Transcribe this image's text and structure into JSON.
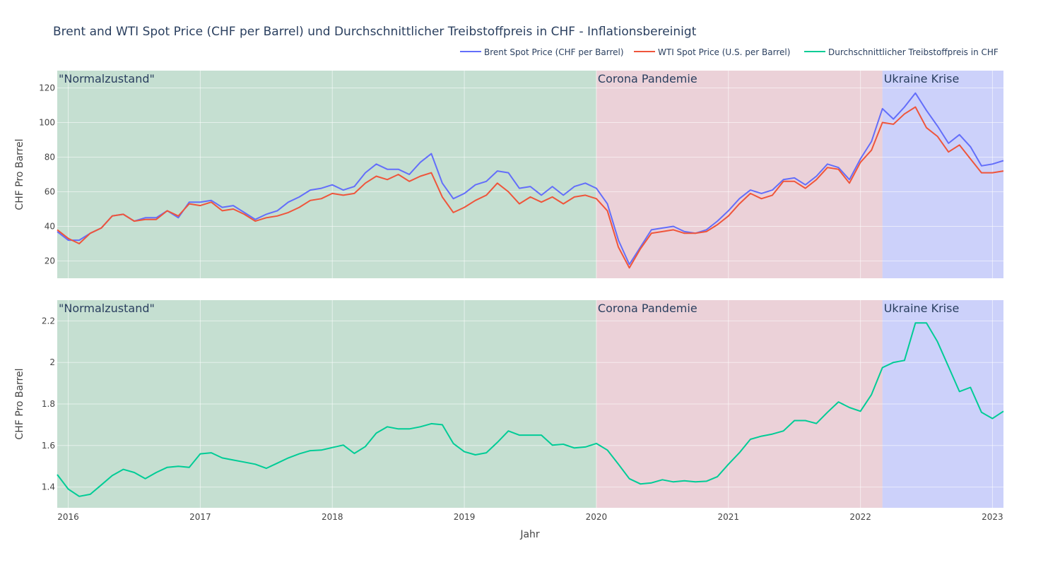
{
  "chart_data": {
    "type": "line",
    "title": "Brent and WTI Spot Price (CHF per Barrel) und Durchschnittlicher Treibstoffpreis in CHF - Inflationsbereinigt",
    "xlabel": "Jahr",
    "x_ticks": [
      "2016",
      "2017",
      "2018",
      "2019",
      "2020",
      "2021",
      "2022",
      "2023"
    ],
    "x_range": [
      "2015-12",
      "2023-02"
    ],
    "legend_position": "top-right",
    "periods": [
      {
        "label": "\"Normalzustand\"",
        "start": "2015-12",
        "end": "2020-01",
        "color": "#8bbfa3"
      },
      {
        "label": "Corona Pandemie",
        "start": "2020-01",
        "end": "2022-03",
        "color": "#d8a4b1"
      },
      {
        "label": "Ukraine Krise",
        "start": "2022-03",
        "end": "2023-02",
        "color": "#9aa3f5"
      }
    ],
    "panels": [
      {
        "ylabel": "CHF Pro Barrel",
        "ylim": [
          10,
          130
        ],
        "y_ticks": [
          20,
          40,
          60,
          80,
          100,
          120
        ],
        "series": [
          {
            "name": "Brent Spot Price (CHF per Barrel)",
            "color": "#636efa",
            "start": "2015-12",
            "values": [
              37,
              32,
              32,
              36,
              39,
              46,
              47,
              43,
              45,
              45,
              49,
              45,
              54,
              54,
              55,
              51,
              52,
              48,
              44,
              47,
              49,
              54,
              57,
              61,
              62,
              64,
              61,
              63,
              71,
              76,
              73,
              73,
              70,
              77,
              82,
              65,
              56,
              59,
              64,
              66,
              72,
              71,
              62,
              63,
              58,
              63,
              58,
              63,
              65,
              62,
              53,
              32,
              18,
              28,
              38,
              39,
              40,
              37,
              36,
              38,
              43,
              49,
              56,
              61,
              59,
              61,
              67,
              68,
              64,
              69,
              76,
              74,
              67,
              79,
              89,
              108,
              102,
              109,
              117,
              107,
              98,
              88,
              93,
              86,
              75,
              76,
              78
            ]
          },
          {
            "name": "WTI Spot Price (U.S. per Barrel)",
            "color": "#ef553b",
            "start": "2015-12",
            "values": [
              38,
              33,
              30,
              36,
              39,
              46,
              47,
              43,
              44,
              44,
              49,
              46,
              53,
              52,
              54,
              49,
              50,
              47,
              43,
              45,
              46,
              48,
              51,
              55,
              56,
              59,
              58,
              59,
              65,
              69,
              67,
              70,
              66,
              69,
              71,
              57,
              48,
              51,
              55,
              58,
              65,
              60,
              53,
              57,
              54,
              57,
              53,
              57,
              58,
              56,
              49,
              28,
              16,
              27,
              36,
              37,
              38,
              36,
              36,
              37,
              41,
              46,
              53,
              59,
              56,
              58,
              66,
              66,
              62,
              67,
              74,
              73,
              65,
              77,
              84,
              100,
              99,
              105,
              109,
              97,
              92,
              83,
              87,
              79,
              71,
              71,
              72
            ]
          }
        ]
      },
      {
        "ylabel": "CHF Pro Barrel",
        "ylim": [
          1.3,
          2.3
        ],
        "y_ticks": [
          1.4,
          1.6,
          1.8,
          2.0,
          2.2
        ],
        "y_tick_labels": [
          "1.4",
          "1.6",
          "1.8",
          "2",
          "2.2"
        ],
        "series": [
          {
            "name": "Durchschnittlicher Treibstoffpreis in CHF",
            "color": "#00cc96",
            "start": "2015-12",
            "values": [
              1.46,
              1.39,
              1.355,
              1.365,
              1.41,
              1.455,
              1.485,
              1.47,
              1.44,
              1.47,
              1.495,
              1.5,
              1.495,
              1.56,
              1.565,
              1.54,
              1.53,
              1.52,
              1.51,
              1.49,
              1.515,
              1.54,
              1.56,
              1.575,
              1.578,
              1.59,
              1.602,
              1.562,
              1.595,
              1.66,
              1.69,
              1.68,
              1.68,
              1.69,
              1.705,
              1.7,
              1.61,
              1.57,
              1.555,
              1.565,
              1.615,
              1.67,
              1.65,
              1.65,
              1.65,
              1.602,
              1.606,
              1.588,
              1.593,
              1.61,
              1.578,
              1.51,
              1.44,
              1.415,
              1.42,
              1.435,
              1.425,
              1.43,
              1.425,
              1.428,
              1.45,
              1.51,
              1.565,
              1.63,
              1.645,
              1.655,
              1.67,
              1.72,
              1.72,
              1.706,
              1.76,
              1.81,
              1.783,
              1.765,
              1.845,
              1.975,
              2.0,
              2.01,
              2.19,
              2.19,
              2.1,
              1.98,
              1.86,
              1.88,
              1.76,
              1.73,
              1.765
            ]
          }
        ]
      }
    ]
  }
}
